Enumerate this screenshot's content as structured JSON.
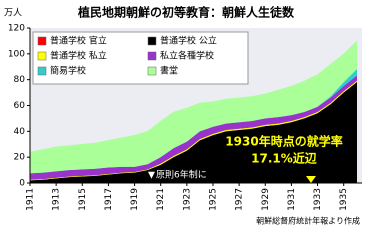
{
  "chart_data": {
    "type": "stacked-area",
    "title": "植民地期朝鮮の初等教育：朝鮮人生徒数",
    "y_label": "万人",
    "source": "朝鮮総督府統計年報より作成",
    "annotations": [
      "原則6年制に",
      "1930年時点の就学率",
      "17.1%近辺"
    ],
    "x": [
      1911,
      1912,
      1913,
      1914,
      1915,
      1916,
      1917,
      1918,
      1919,
      1920,
      1921,
      1922,
      1923,
      1924,
      1925,
      1926,
      1927,
      1928,
      1929,
      1930,
      1931,
      1932,
      1933,
      1934,
      1935,
      1936
    ],
    "xlim": [
      1911,
      1936.4
    ],
    "xticks": [
      1911,
      1913,
      1915,
      1917,
      1919,
      1921,
      1923,
      1925,
      1927,
      1929,
      1931,
      1933,
      1935
    ],
    "ylim": [
      0,
      120
    ],
    "yticks": [
      0,
      20,
      40,
      60,
      80,
      100,
      120
    ],
    "series": [
      {
        "name": "普通学校 官立",
        "color": "#ff0000",
        "values": [
          0.2,
          0.2,
          0.2,
          0.2,
          0.2,
          0.2,
          0.2,
          0.2,
          0.2,
          0.2,
          0.2,
          0.2,
          0.2,
          0.2,
          0.2,
          0.2,
          0.2,
          0.2,
          0.2,
          0.2,
          0.2,
          0.2,
          0.2,
          0.2,
          0.2,
          0.2
        ]
      },
      {
        "name": "普通学校 公立",
        "color": "#000000",
        "values": [
          2,
          2.5,
          3.5,
          4.5,
          5,
          5.5,
          6.5,
          7.5,
          8,
          10,
          14,
          20,
          25,
          33,
          37,
          40,
          41,
          42,
          44,
          45,
          47,
          50,
          54,
          61,
          70,
          78
        ]
      },
      {
        "name": "普通学校 私立",
        "color": "#ffff00",
        "values": [
          0.5,
          0.5,
          0.5,
          0.5,
          0.5,
          0.5,
          0.5,
          0.5,
          0.5,
          0.5,
          1,
          1,
          1,
          1,
          1,
          1,
          1,
          1,
          1,
          1,
          1,
          1,
          1,
          1,
          1,
          1
        ]
      },
      {
        "name": "私立各種学校",
        "color": "#9933cc",
        "values": [
          5,
          5,
          5,
          5,
          5,
          5,
          5,
          4.5,
          4,
          4,
          5,
          6,
          6,
          6,
          5.5,
          5,
          5,
          5,
          5,
          5,
          4.5,
          4,
          4,
          4,
          4,
          4
        ]
      },
      {
        "name": "簡易学校",
        "color": "#33cccc",
        "values": [
          0,
          0,
          0,
          0,
          0,
          0,
          0,
          0,
          0,
          0,
          0,
          0,
          0,
          0,
          0,
          0,
          0,
          0,
          0,
          0,
          0,
          0,
          0,
          1,
          3,
          5
        ]
      },
      {
        "name": "書堂",
        "color": "#aaff99",
        "values": [
          16.3,
          17.8,
          18.8,
          18.8,
          19.3,
          19.8,
          20.8,
          22.3,
          24.3,
          25.3,
          27.8,
          27.8,
          25.8,
          21.8,
          19.3,
          18.8,
          18.8,
          18.8,
          18.8,
          20.8,
          22.3,
          23.8,
          24.8,
          24.8,
          21.8,
          21.8
        ]
      }
    ]
  }
}
